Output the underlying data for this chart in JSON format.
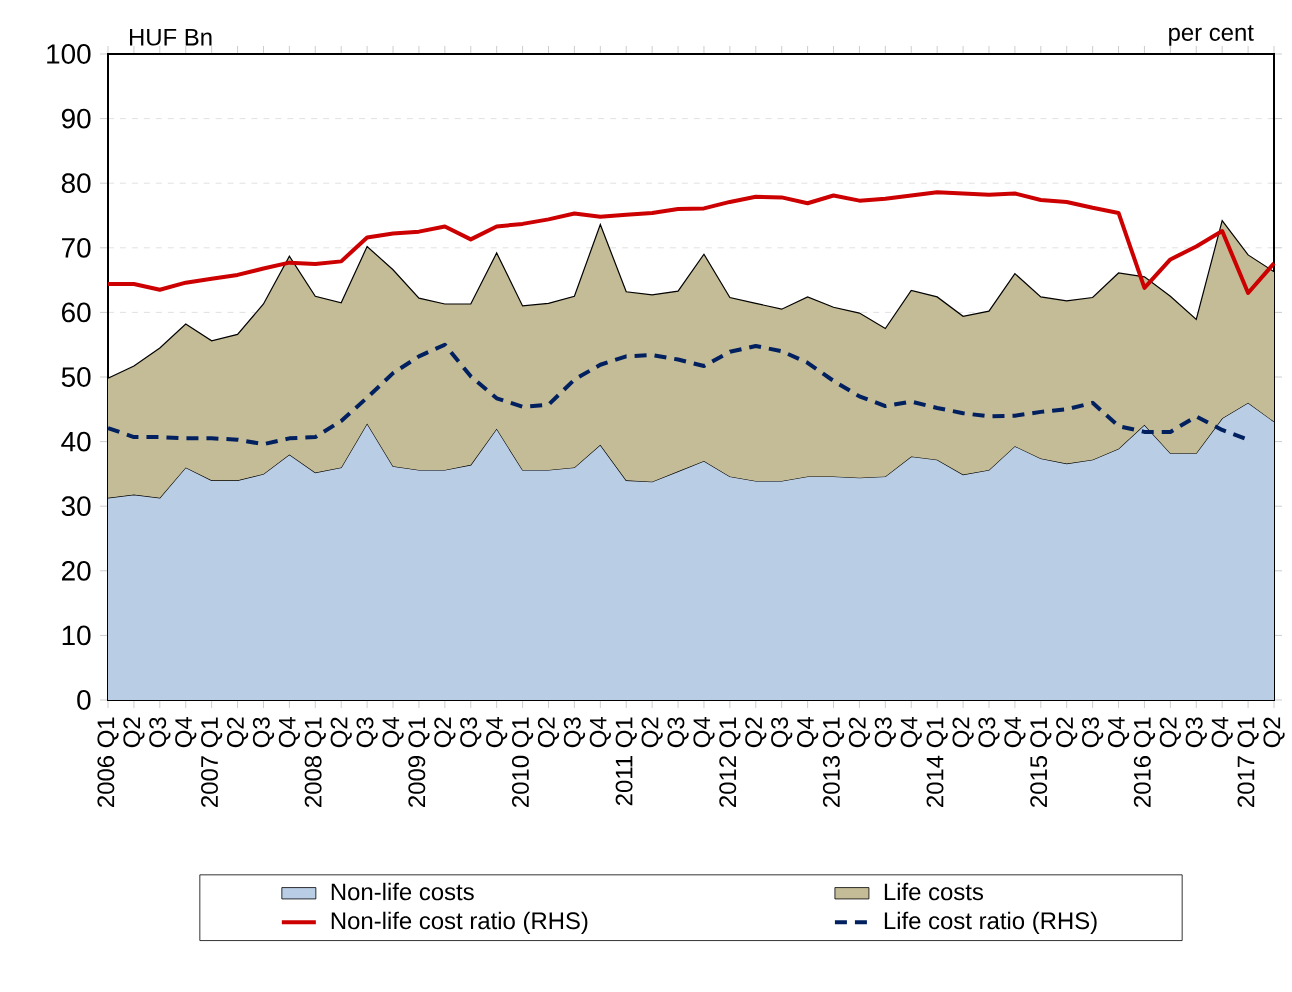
{
  "chart_data": {
    "type": "area",
    "ylabel": "HUF Bn",
    "y2label": "per cent",
    "categories": [
      "2006 Q1",
      "Q2",
      "Q3",
      "Q4",
      "2007 Q1",
      "Q2",
      "Q3",
      "Q4",
      "2008 Q1",
      "Q2",
      "Q3",
      "Q4",
      "2009 Q1",
      "Q2",
      "Q3",
      "Q4",
      "2010 Q1",
      "Q2",
      "Q3",
      "Q4",
      "2011 Q1",
      "Q2",
      "Q3",
      "Q4",
      "2012 Q1",
      "Q2",
      "Q3",
      "Q4",
      "2013 Q1",
      "Q2",
      "Q3",
      "Q4",
      "2014 Q1",
      "Q2",
      "Q3",
      "Q4",
      "2015 Q1",
      "Q2",
      "Q3",
      "Q4",
      "2016 Q1",
      "Q2",
      "Q3",
      "Q4",
      "2017 Q1",
      "Q2"
    ],
    "stacked": true,
    "series": [
      {
        "name": "Non-life costs",
        "color": "#b9cde5",
        "values": [
          31.3,
          31.8,
          31.3,
          36,
          34,
          34,
          35,
          38,
          35.2,
          36,
          42.8,
          36.2,
          35.6,
          35.6,
          36.4,
          42,
          35.6,
          35.6,
          36,
          39.5,
          34,
          33.8,
          35.4,
          37,
          34.6,
          33.9,
          33.9,
          34.6,
          34.6,
          34.4,
          34.6,
          37.7,
          37.2,
          34.9,
          35.6,
          39.3,
          37.4,
          36.6,
          37.2,
          38.9,
          42.6,
          38.2,
          38.2,
          43.6,
          46,
          43.1
        ]
      },
      {
        "name": "Life costs",
        "color": "#c4bc96",
        "values": [
          18.5,
          19.9,
          23.2,
          22.2,
          21.6,
          22.6,
          26.3,
          30.7,
          27.3,
          25.5,
          27.4,
          30.4,
          26.6,
          25.7,
          24.9,
          27.2,
          25.4,
          25.8,
          26.5,
          34.1,
          29.2,
          28.9,
          27.9,
          32,
          27.7,
          27.5,
          26.6,
          27.8,
          26.2,
          25.5,
          22.9,
          25.7,
          25.2,
          24.5,
          24.6,
          26.7,
          25,
          25.2,
          25.1,
          27.2,
          22.9,
          24.3,
          20.7,
          30.6,
          22.9,
          23.2
        ]
      },
      {
        "name": "Non-life cost ratio (RHS)",
        "type": "line",
        "color": "#cc0000",
        "line_style": "solid",
        "values": [
          64.4,
          64.4,
          63.5,
          64.6,
          65.2,
          65.8,
          66.8,
          67.7,
          67.5,
          67.9,
          71.6,
          72.2,
          72.5,
          73.3,
          71.3,
          73.3,
          73.7,
          74.4,
          75.3,
          74.8,
          75.1,
          75.4,
          76,
          76.1,
          77.1,
          77.9,
          77.8,
          76.9,
          78.1,
          77.3,
          77.6,
          78.1,
          78.6,
          78.4,
          78.2,
          78.4,
          77.4,
          77.1,
          76.2,
          75.4,
          63.8,
          68.2,
          70.2,
          72.6,
          63,
          67.6
        ]
      },
      {
        "name": "Life cost ratio (RHS)",
        "type": "line",
        "color": "#002060",
        "line_style": "dashed",
        "values": [
          42.1,
          40.7,
          40.7,
          40.5,
          40.5,
          40.3,
          39.6,
          40.5,
          40.7,
          43.2,
          46.8,
          50.6,
          53.2,
          55,
          50.1,
          46.7,
          45.4,
          45.7,
          49.6,
          51.9,
          53.2,
          53.4,
          52.7,
          51.7,
          53.9,
          54.8,
          54,
          52.2,
          49.4,
          47,
          45.5,
          46.2,
          45.2,
          44.4,
          43.9,
          44,
          44.6,
          45,
          46,
          42.4,
          41.5,
          41.5,
          43.9,
          41.8,
          40.3,
          null
        ]
      }
    ],
    "ylim": [
      0,
      100
    ],
    "yticks": [
      0,
      10,
      20,
      30,
      40,
      50,
      60,
      70,
      80,
      90,
      100
    ],
    "grid": "y",
    "legend": "bottom"
  }
}
